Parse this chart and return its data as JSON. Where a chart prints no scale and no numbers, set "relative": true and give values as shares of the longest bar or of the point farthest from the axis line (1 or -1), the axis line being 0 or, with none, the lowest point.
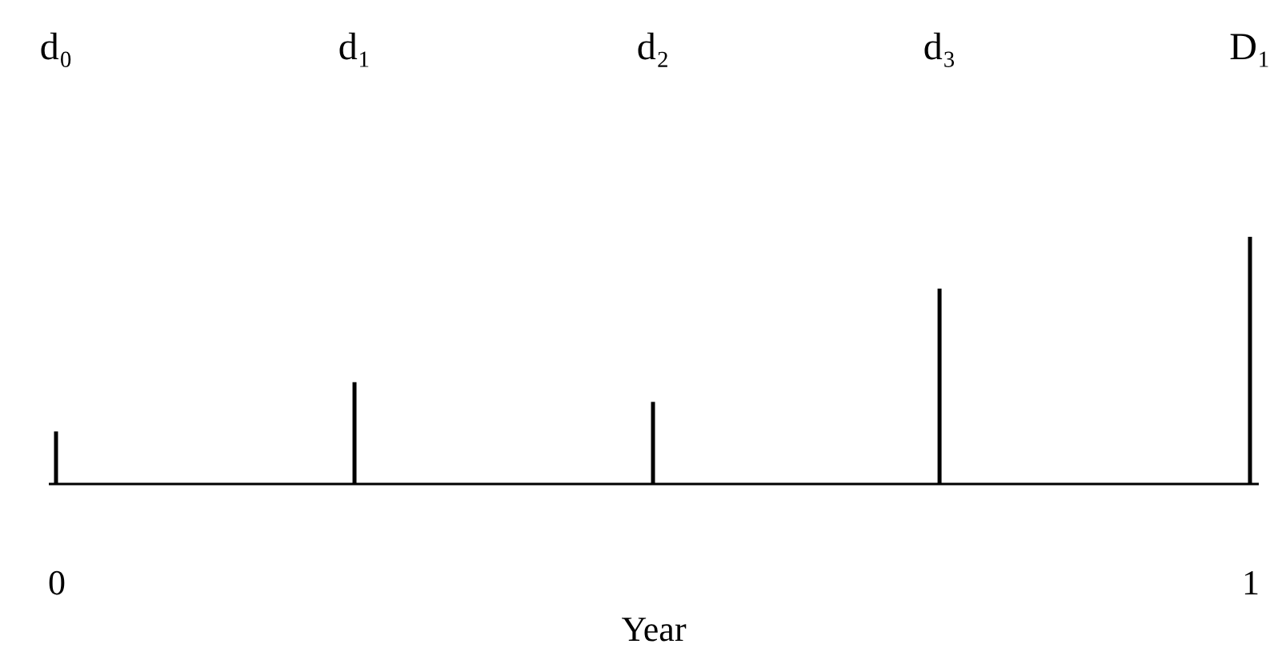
{
  "chart_data": {
    "type": "bar",
    "relative": true,
    "xlabel": "Year",
    "x": [
      0,
      0.25,
      0.5,
      0.74,
      1
    ],
    "values": [
      0.21,
      0.41,
      0.33,
      0.79,
      1
    ],
    "color": "#000000",
    "xlim": [
      0,
      1
    ],
    "xticks": [
      0,
      1
    ],
    "grid": false,
    "annotations": [
      "d₀",
      "d₁",
      "d₂",
      "d₃",
      "D₁"
    ]
  }
}
